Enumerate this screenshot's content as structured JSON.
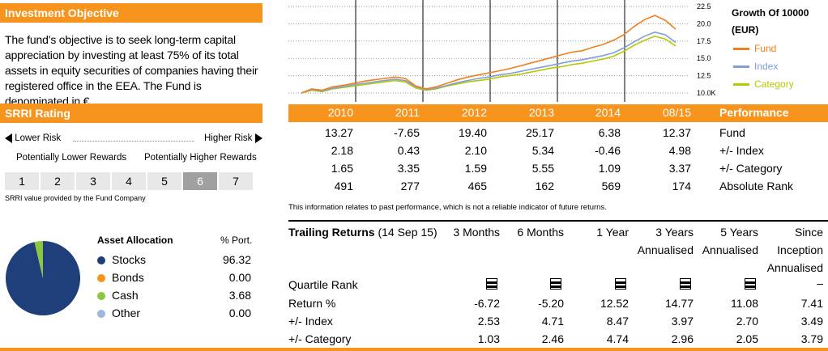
{
  "objective": {
    "title": "Investment Objective",
    "text": "The fund’s objective is to seek long-term capital appreciation by investing at least 75% of its total assets in equity securities of companies having their registered office in the EEA. The Fund is denominated in €."
  },
  "srri": {
    "title": "SRRI Rating",
    "lower_risk": "Lower Risk",
    "higher_risk": "Higher Risk",
    "lower_rewards": "Potentially Lower Rewards",
    "higher_rewards": "Potentially Higher Rewards",
    "levels": [
      "1",
      "2",
      "3",
      "4",
      "5",
      "6",
      "7"
    ],
    "active_level": "6",
    "note": "SRRI value provided by the Fund Company"
  },
  "asset_allocation": {
    "title": "Asset Allocation",
    "col_header": "% Port.",
    "items": [
      {
        "name": "Stocks",
        "value": "96.32",
        "color": "#1f3f7a"
      },
      {
        "name": "Bonds",
        "value": "0.00",
        "color": "#f7941d"
      },
      {
        "name": "Cash",
        "value": "3.68",
        "color": "#8dc63f"
      },
      {
        "name": "Other",
        "value": "0.00",
        "color": "#9bb8e0"
      }
    ]
  },
  "growth": {
    "title": "Growth Of 10000",
    "currency": "(EUR)",
    "legend": [
      {
        "name": "Fund",
        "color": "#f07f1f"
      },
      {
        "name": "Index",
        "color": "#7f9fd6"
      },
      {
        "name": "Category",
        "color": "#b5c900"
      }
    ]
  },
  "chart_data": {
    "type": "line",
    "y_ticks": [
      "22.5",
      "20.0",
      "17.5",
      "15.0",
      "12.5",
      "10.0K"
    ],
    "ylim": [
      10,
      22.5
    ],
    "year_markers": [
      "2010",
      "2011",
      "2012",
      "2013",
      "2014",
      "08/15"
    ],
    "series": [
      {
        "name": "Fund",
        "color": "#f07f1f",
        "values": [
          10.0,
          10.6,
          10.4,
          10.9,
          11.1,
          11.4,
          11.7,
          11.9,
          12.1,
          12.3,
          12.1,
          11.0,
          10.6,
          10.9,
          11.4,
          11.9,
          12.3,
          12.6,
          12.9,
          13.2,
          13.5,
          13.9,
          14.3,
          14.7,
          15.1,
          15.5,
          15.9,
          16.1,
          16.6,
          17.0,
          17.6,
          18.4,
          19.6,
          20.6,
          21.2,
          20.5,
          19.2
        ]
      },
      {
        "name": "Index",
        "color": "#7f9fd6",
        "values": [
          10.0,
          10.5,
          10.3,
          10.7,
          10.9,
          11.2,
          11.4,
          11.6,
          11.8,
          12.0,
          11.8,
          10.9,
          10.5,
          10.7,
          11.1,
          11.5,
          11.8,
          12.1,
          12.3,
          12.6,
          12.8,
          13.1,
          13.4,
          13.7,
          14.0,
          14.3,
          14.6,
          14.8,
          15.1,
          15.4,
          15.8,
          16.5,
          17.4,
          18.2,
          18.8,
          18.4,
          17.3
        ]
      },
      {
        "name": "Category",
        "color": "#b5c900",
        "values": [
          10.0,
          10.4,
          10.2,
          10.6,
          10.8,
          11.0,
          11.2,
          11.4,
          11.6,
          11.8,
          11.6,
          10.7,
          10.4,
          10.6,
          11.0,
          11.3,
          11.6,
          11.8,
          12.0,
          12.3,
          12.5,
          12.7,
          13.0,
          13.3,
          13.6,
          13.8,
          14.1,
          14.3,
          14.6,
          14.9,
          15.3,
          16.0,
          16.9,
          17.6,
          18.2,
          17.8,
          16.8
        ]
      }
    ]
  },
  "performance": {
    "header": "Performance",
    "years": [
      "2010",
      "2011",
      "2012",
      "2013",
      "2014",
      "08/15"
    ],
    "rows": [
      {
        "label": "Fund",
        "values": [
          "13.27",
          "-7.65",
          "19.40",
          "25.17",
          "6.38",
          "12.37"
        ]
      },
      {
        "label": "+/- Index",
        "values": [
          "2.18",
          "0.43",
          "2.10",
          "5.34",
          "-0.46",
          "4.98"
        ]
      },
      {
        "label": "+/- Category",
        "values": [
          "1.65",
          "3.35",
          "1.59",
          "5.55",
          "1.09",
          "3.37"
        ]
      },
      {
        "label": "Absolute Rank",
        "values": [
          "491",
          "277",
          "465",
          "162",
          "569",
          "174"
        ]
      }
    ],
    "disclaimer": "This information relates to past performance, which is not a reliable indicator of future returns."
  },
  "trailing": {
    "title": "Trailing Returns",
    "date": "(14 Sep 15)",
    "columns": [
      [
        "3 Months"
      ],
      [
        "6 Months"
      ],
      [
        "1 Year"
      ],
      [
        "3 Years",
        "Annualised"
      ],
      [
        "5 Years",
        "Annualised"
      ],
      [
        "Since",
        "Inception",
        "Annualised"
      ]
    ],
    "quartile_label": "Quartile Rank",
    "quartile_last": "–",
    "rows": [
      {
        "label": "Return %",
        "values": [
          "-6.72",
          "-5.20",
          "12.52",
          "14.77",
          "11.08",
          "7.41"
        ]
      },
      {
        "label": "+/- Index",
        "values": [
          "2.53",
          "4.71",
          "8.47",
          "3.97",
          "2.70",
          "3.49"
        ]
      },
      {
        "label": "+/- Category",
        "values": [
          "1.03",
          "2.46",
          "4.74",
          "2.96",
          "2.05",
          "3.79"
        ]
      }
    ]
  }
}
